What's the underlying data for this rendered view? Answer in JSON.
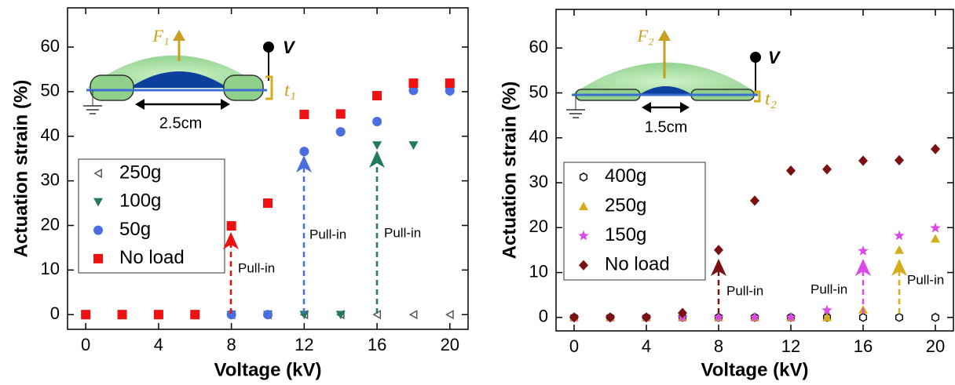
{
  "chart_data": [
    {
      "type": "scatter",
      "x_label": "Voltage (kV)",
      "y_label": "Actuation strain (%)",
      "x": [
        0,
        2,
        4,
        6,
        8,
        10,
        12,
        14,
        16,
        18,
        20
      ],
      "xlim": [
        -1,
        21
      ],
      "ylim": [
        -3.3,
        68.8
      ],
      "xticks": [
        0,
        4,
        8,
        12,
        16,
        20
      ],
      "yticks": [
        0,
        10,
        20,
        30,
        40,
        50,
        60
      ],
      "series": [
        {
          "name": "250g",
          "color": "#555555",
          "marker": "triangle-left",
          "open": true,
          "values": [
            0,
            0,
            0,
            0,
            0,
            0,
            0,
            0,
            0,
            0,
            0
          ]
        },
        {
          "name": "100g",
          "color": "#237a5a",
          "marker": "triangle-down",
          "open": false,
          "values": [
            0,
            0,
            0,
            0,
            0,
            0,
            0,
            0,
            38,
            38,
            50
          ]
        },
        {
          "name": "50g",
          "color": "#4a6ee0",
          "marker": "circle",
          "open": false,
          "values": [
            0,
            0,
            0,
            0,
            0,
            0,
            36.6,
            41,
            43.3,
            50.3,
            50.2
          ]
        },
        {
          "name": "No load",
          "color": "#ee1111",
          "marker": "square",
          "open": false,
          "values": [
            0,
            0,
            0,
            0,
            19.9,
            25,
            44.9,
            45,
            49.1,
            51.9,
            51.9
          ]
        }
      ],
      "annotations": [
        "Pull-in",
        "Pull-in",
        "Pull-in"
      ],
      "inset_labels": {
        "force": "F₁",
        "voltage": "V",
        "thickness": "t₁",
        "width": "2.5cm"
      }
    },
    {
      "type": "scatter",
      "x_label": "Voltage (kV)",
      "y_label": "Actuation strain (%)",
      "x": [
        0,
        2,
        4,
        6,
        8,
        10,
        12,
        14,
        16,
        18,
        20
      ],
      "xlim": [
        -1,
        21
      ],
      "ylim": [
        -3,
        68.6
      ],
      "xticks": [
        0,
        4,
        8,
        12,
        16,
        20
      ],
      "yticks": [
        0,
        10,
        20,
        30,
        40,
        50,
        60
      ],
      "series": [
        {
          "name": "400g",
          "color": "#111111",
          "marker": "hexagon",
          "open": true,
          "values": [
            0,
            0,
            0,
            0,
            0,
            0,
            0,
            0,
            0,
            0,
            0
          ]
        },
        {
          "name": "250g",
          "color": "#d4ac1c",
          "marker": "triangle-up",
          "open": false,
          "values": [
            0,
            0,
            0,
            0,
            0,
            0,
            0,
            0,
            1.7,
            15,
            17.5
          ]
        },
        {
          "name": "150g",
          "color": "#d94ae6",
          "marker": "star",
          "open": false,
          "values": [
            0,
            0,
            0,
            0,
            0,
            0,
            0,
            1.6,
            14.8,
            18.2,
            19.9
          ]
        },
        {
          "name": "No load",
          "color": "#7a1010",
          "marker": "diamond",
          "open": false,
          "values": [
            0,
            0,
            0,
            1,
            15,
            26,
            32.7,
            33,
            34.9,
            35,
            37.5
          ]
        }
      ],
      "annotations": [
        "Pull-in",
        "Pull-in",
        "Pull-in"
      ],
      "inset_labels": {
        "force": "F₂",
        "voltage": "V",
        "thickness": "t₂",
        "width": "1.5cm"
      }
    }
  ]
}
